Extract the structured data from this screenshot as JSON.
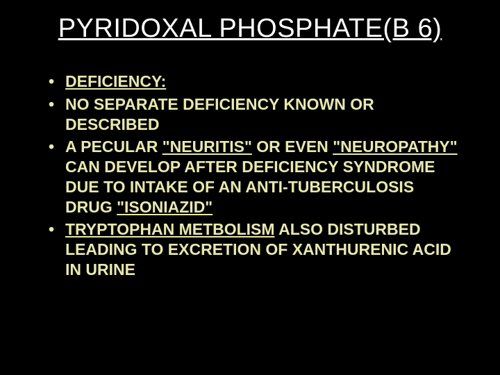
{
  "title": "PYRIDOXAL PHOSPHATE(B 6)",
  "bullets": [
    {
      "segments": [
        {
          "text": "DEFICIENCY:",
          "underline": true
        }
      ]
    },
    {
      "segments": [
        {
          "text": "NO SEPARATE DEFICIENCY KNOWN OR DESCRIBED",
          "underline": false
        }
      ]
    },
    {
      "segments": [
        {
          "text": "A PECULAR ",
          "underline": false
        },
        {
          "text": "\"NEURITIS\"",
          "underline": true
        },
        {
          "text": " OR EVEN ",
          "underline": false
        },
        {
          "text": "\"NEUROPATHY\"",
          "underline": true
        },
        {
          "text": " CAN DEVELOP AFTER DEFICIENCY SYNDROME DUE TO INTAKE OF AN ANTI-TUBERCULOSIS DRUG ",
          "underline": false
        },
        {
          "text": "\"ISONIAZID\"",
          "underline": true
        }
      ]
    },
    {
      "segments": [
        {
          "text": "TRYPTOPHAN METBOLISM",
          "underline": true
        },
        {
          "text": " ALSO DISTURBED LEADING TO EXCRETION OF XANTHURENIC ACID IN URINE",
          "underline": false
        }
      ]
    }
  ],
  "colors": {
    "background": "#000000",
    "title_color": "#ffffff",
    "bullet_color": "#e8e8b0"
  },
  "typography": {
    "title_fontsize": 38,
    "bullet_fontsize": 23,
    "font_family": "Arial"
  }
}
